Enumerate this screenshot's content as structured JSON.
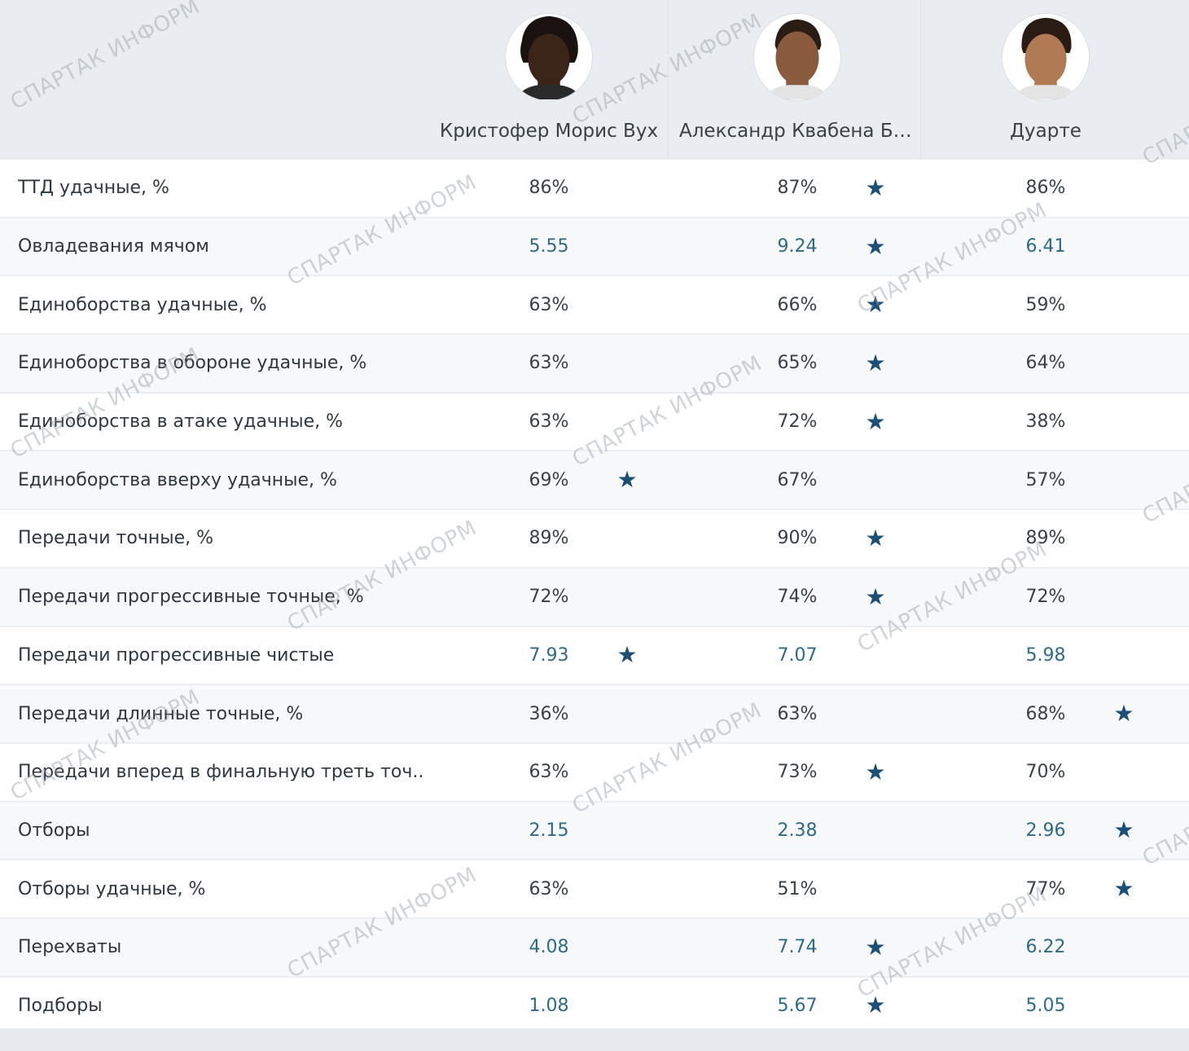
{
  "players": [
    {
      "name": "Кристофер Морис Вух",
      "skin": "#3b2418",
      "hair": "#1a1210"
    },
    {
      "name": "Александр Квабена Ба...",
      "skin": "#8a5a3e",
      "hair": "#2a1d16"
    },
    {
      "name": "Дуарте",
      "skin": "#b07a55",
      "hair": "#2a1c14"
    }
  ],
  "rows": [
    {
      "metric": "ТТД удачные, %",
      "values": [
        "86%",
        "87%",
        "86%"
      ],
      "star": 1
    },
    {
      "metric": "Овладевания мячом",
      "values": [
        "5.55",
        "9.24",
        "6.41"
      ],
      "star": 1
    },
    {
      "metric": "Единоборства удачные, %",
      "values": [
        "63%",
        "66%",
        "59%"
      ],
      "star": 1
    },
    {
      "metric": "Единоборства в обороне удачные, %",
      "values": [
        "63%",
        "65%",
        "64%"
      ],
      "star": 1
    },
    {
      "metric": "Единоборства в атаке удачные, %",
      "values": [
        "63%",
        "72%",
        "38%"
      ],
      "star": 1
    },
    {
      "metric": "Единоборства вверху удачные, %",
      "values": [
        "69%",
        "67%",
        "57%"
      ],
      "star": 0
    },
    {
      "metric": "Передачи точные, %",
      "values": [
        "89%",
        "90%",
        "89%"
      ],
      "star": 1
    },
    {
      "metric": "Передачи прогрессивные точные, %",
      "values": [
        "72%",
        "74%",
        "72%"
      ],
      "star": 1
    },
    {
      "metric": "Передачи прогрессивные чистые",
      "values": [
        "7.93",
        "7.07",
        "5.98"
      ],
      "star": 0
    },
    {
      "metric": "Передачи длинные точные, %",
      "values": [
        "36%",
        "63%",
        "68%"
      ],
      "star": 2
    },
    {
      "metric": "Передачи вперед в финальную треть точ...",
      "values": [
        "63%",
        "73%",
        "70%"
      ],
      "star": 1
    },
    {
      "metric": "Отборы",
      "values": [
        "2.15",
        "2.38",
        "2.96"
      ],
      "star": 2
    },
    {
      "metric": "Отборы удачные, %",
      "values": [
        "63%",
        "51%",
        "77%"
      ],
      "star": 2
    },
    {
      "metric": "Перехваты",
      "values": [
        "4.08",
        "7.74",
        "6.22"
      ],
      "star": 1
    },
    {
      "metric": "Подборы",
      "values": [
        "1.08",
        "5.67",
        "5.05"
      ],
      "star": 1
    }
  ],
  "star_icon": "star-icon",
  "watermark": "СПАРТАК ИНФОРМ",
  "colors": {
    "star": "#1c4f78",
    "numeric": "#2f6b86",
    "text": "#333b44"
  }
}
